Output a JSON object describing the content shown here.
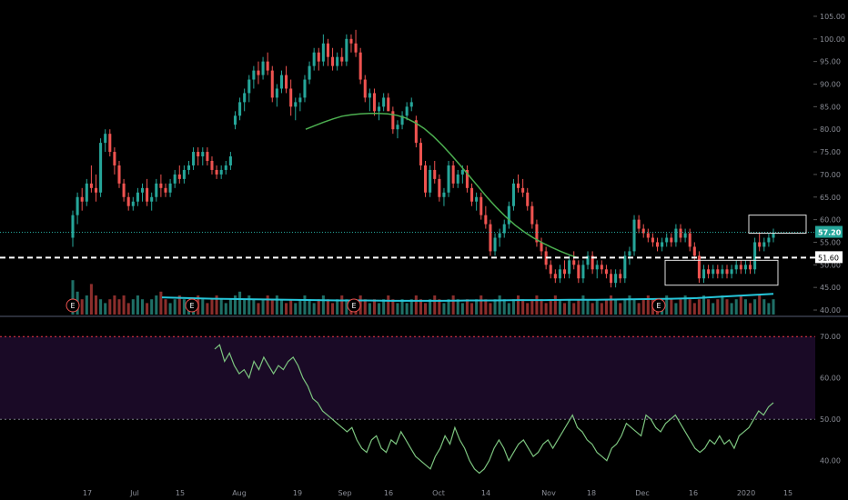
{
  "chart_data": [
    {
      "type": "candlestick",
      "panel": "price",
      "y_ticks": [
        "105.00",
        "100.00",
        "95.00",
        "90.00",
        "85.00",
        "80.00",
        "75.00",
        "70.00",
        "65.00",
        "60.00",
        "55.00",
        "50.00",
        "45.00",
        "40.00"
      ],
      "ylim": [
        39,
        107
      ],
      "last_price": "57.20",
      "level_line": "51.60",
      "colors": {
        "up": "#26a69a",
        "down": "#ef5350",
        "ma": "#4caf50",
        "vol_ma": "#26c6da",
        "level": "#ffffff",
        "last": "#26a69a"
      },
      "earnings_markers": [
        "E",
        "E",
        "E",
        "E"
      ],
      "candles": [
        [
          56,
          62,
          54,
          61
        ],
        [
          61,
          66,
          59,
          65
        ],
        [
          65,
          67,
          62,
          64
        ],
        [
          64,
          69,
          63,
          68
        ],
        [
          68,
          72,
          66,
          67
        ],
        [
          67,
          70,
          64,
          66
        ],
        [
          66,
          78,
          65,
          77
        ],
        [
          77,
          80,
          75,
          79
        ],
        [
          79,
          80,
          74,
          75
        ],
        [
          75,
          76,
          70,
          72
        ],
        [
          72,
          73,
          67,
          68
        ],
        [
          68,
          69,
          64,
          65
        ],
        [
          65,
          66,
          62,
          63
        ],
        [
          63,
          65,
          62,
          64
        ],
        [
          64,
          67,
          63,
          66
        ],
        [
          66,
          68,
          64,
          67
        ],
        [
          67,
          69,
          63,
          64
        ],
        [
          64,
          66,
          62,
          65
        ],
        [
          65,
          69,
          64,
          68
        ],
        [
          68,
          70,
          65,
          67
        ],
        [
          67,
          68,
          65,
          66
        ],
        [
          66,
          69,
          65,
          68
        ],
        [
          68,
          71,
          67,
          70
        ],
        [
          70,
          72,
          68,
          69
        ],
        [
          69,
          72,
          68,
          71
        ],
        [
          71,
          73,
          70,
          72
        ],
        [
          72,
          76,
          71,
          75
        ],
        [
          75,
          76,
          72,
          74
        ],
        [
          74,
          76,
          72,
          75
        ],
        [
          75,
          76,
          72,
          73
        ],
        [
          73,
          74,
          70,
          71
        ],
        [
          71,
          72,
          69,
          70
        ],
        [
          70,
          72,
          69,
          71
        ],
        [
          71,
          73,
          70,
          72
        ],
        [
          72,
          75,
          71,
          74
        ],
        [
          81,
          84,
          80,
          83
        ],
        [
          83,
          87,
          82,
          86
        ],
        [
          86,
          89,
          84,
          88
        ],
        [
          88,
          92,
          86,
          91
        ],
        [
          91,
          94,
          89,
          93
        ],
        [
          93,
          95,
          90,
          92
        ],
        [
          92,
          96,
          91,
          95
        ],
        [
          95,
          97,
          92,
          93
        ],
        [
          93,
          94,
          86,
          87
        ],
        [
          87,
          90,
          85,
          89
        ],
        [
          89,
          93,
          88,
          92
        ],
        [
          92,
          94,
          88,
          89
        ],
        [
          89,
          91,
          83,
          85
        ],
        [
          85,
          87,
          82,
          86
        ],
        [
          86,
          88,
          84,
          87
        ],
        [
          87,
          92,
          86,
          91
        ],
        [
          91,
          95,
          90,
          94
        ],
        [
          94,
          98,
          93,
          97
        ],
        [
          97,
          98,
          93,
          95
        ],
        [
          95,
          101,
          94,
          99
        ],
        [
          99,
          100,
          94,
          96
        ],
        [
          96,
          98,
          93,
          94
        ],
        [
          94,
          97,
          93,
          96
        ],
        [
          96,
          98,
          94,
          95
        ],
        [
          95,
          101,
          94,
          100
        ],
        [
          100,
          101,
          97,
          99
        ],
        [
          99,
          102,
          96,
          97
        ],
        [
          97,
          98,
          90,
          91
        ],
        [
          91,
          92,
          86,
          87
        ],
        [
          87,
          89,
          84,
          88
        ],
        [
          88,
          89,
          83,
          84
        ],
        [
          84,
          86,
          82,
          85
        ],
        [
          85,
          88,
          84,
          87
        ],
        [
          87,
          88,
          84,
          84
        ],
        [
          84,
          85,
          79,
          80
        ],
        [
          80,
          82,
          78,
          81
        ],
        [
          81,
          84,
          80,
          83
        ],
        [
          83,
          86,
          82,
          85
        ],
        [
          85,
          87,
          84,
          86
        ],
        [
          82,
          83,
          76,
          77
        ],
        [
          77,
          78,
          71,
          72
        ],
        [
          72,
          73,
          65,
          66
        ],
        [
          66,
          72,
          65,
          71
        ],
        [
          71,
          73,
          68,
          69
        ],
        [
          69,
          70,
          64,
          65
        ],
        [
          65,
          67,
          63,
          66
        ],
        [
          66,
          73,
          65,
          72
        ],
        [
          72,
          73,
          67,
          68
        ],
        [
          68,
          71,
          67,
          70
        ],
        [
          70,
          72,
          68,
          71
        ],
        [
          71,
          72,
          66,
          67
        ],
        [
          67,
          68,
          63,
          64
        ],
        [
          64,
          66,
          62,
          65
        ],
        [
          65,
          66,
          60,
          61
        ],
        [
          61,
          63,
          58,
          59
        ],
        [
          59,
          60,
          52,
          53
        ],
        [
          53,
          57,
          52,
          56
        ],
        [
          56,
          58,
          54,
          57
        ],
        [
          57,
          60,
          56,
          59
        ],
        [
          59,
          64,
          58,
          63
        ],
        [
          63,
          69,
          62,
          68
        ],
        [
          68,
          70,
          66,
          67
        ],
        [
          67,
          69,
          65,
          66
        ],
        [
          66,
          67,
          62,
          63
        ],
        [
          63,
          64,
          58,
          59
        ],
        [
          59,
          60,
          54,
          55
        ],
        [
          55,
          56,
          52,
          53
        ],
        [
          53,
          54,
          49,
          50
        ],
        [
          50,
          51,
          47,
          48
        ],
        [
          48,
          49,
          46,
          47
        ],
        [
          47,
          50,
          46,
          49
        ],
        [
          49,
          51,
          47,
          48
        ],
        [
          48,
          52,
          47,
          51
        ],
        [
          51,
          53,
          49,
          50
        ],
        [
          50,
          51,
          46,
          47
        ],
        [
          47,
          51,
          46,
          50
        ],
        [
          50,
          53,
          49,
          52
        ],
        [
          52,
          53,
          48,
          49
        ],
        [
          49,
          51,
          47,
          50
        ],
        [
          50,
          51,
          48,
          49
        ],
        [
          49,
          50,
          47,
          48
        ],
        [
          48,
          49,
          45,
          46
        ],
        [
          46,
          49,
          45,
          48
        ],
        [
          48,
          49,
          46,
          47
        ],
        [
          47,
          53,
          46,
          52
        ],
        [
          52,
          54,
          50,
          53
        ],
        [
          53,
          61,
          52,
          60
        ],
        [
          60,
          61,
          57,
          58
        ],
        [
          58,
          59,
          56,
          57
        ],
        [
          57,
          58,
          55,
          56
        ],
        [
          56,
          57,
          54,
          55
        ],
        [
          55,
          56,
          53,
          54
        ],
        [
          54,
          56,
          53,
          55
        ],
        [
          55,
          57,
          54,
          56
        ],
        [
          56,
          57,
          54,
          55
        ],
        [
          55,
          59,
          54,
          58
        ],
        [
          58,
          59,
          55,
          56
        ],
        [
          56,
          58,
          55,
          57
        ],
        [
          57,
          58,
          53,
          54
        ],
        [
          54,
          55,
          51,
          52
        ],
        [
          52,
          53,
          46,
          47
        ],
        [
          47,
          50,
          46,
          49
        ],
        [
          49,
          50,
          47,
          48
        ],
        [
          48,
          50,
          47,
          49
        ],
        [
          49,
          50,
          47,
          48
        ],
        [
          48,
          50,
          47,
          49
        ],
        [
          49,
          50,
          47,
          48
        ],
        [
          48,
          50,
          47,
          49
        ],
        [
          49,
          51,
          48,
          50
        ],
        [
          50,
          51,
          48,
          49
        ],
        [
          49,
          51,
          48,
          50
        ],
        [
          50,
          51,
          48,
          49
        ],
        [
          49,
          56,
          48,
          55
        ],
        [
          55,
          57,
          53,
          54
        ],
        [
          54,
          56,
          53,
          55
        ],
        [
          55,
          57,
          54,
          56
        ],
        [
          56,
          58,
          55,
          57
        ]
      ],
      "ma": [
        80.0,
        80.8,
        81.6,
        82.3,
        82.9,
        83.2,
        83.4,
        83.5,
        83.5,
        83.4,
        83.1,
        82.5,
        81.5,
        80.2,
        78.5,
        76.5,
        74.3,
        72.0,
        69.6,
        67.2,
        64.8,
        62.6,
        60.6,
        58.8,
        57.3,
        56.0,
        54.9,
        53.9,
        53.0,
        52.2,
        51.5
      ],
      "ma_x": [
        336,
        346,
        356,
        366,
        376,
        386,
        396,
        406,
        416,
        426,
        436,
        446,
        456,
        466,
        476,
        486,
        496,
        506,
        516,
        526,
        536,
        546,
        556,
        566,
        576,
        586,
        596,
        606,
        616,
        626,
        636
      ],
      "volume": [
        9,
        6,
        4,
        5,
        8,
        5,
        4,
        3,
        4,
        5,
        4,
        5,
        3,
        4,
        5,
        4,
        3,
        4,
        5,
        6,
        4,
        3,
        4,
        5,
        4,
        3,
        4,
        5,
        4,
        3,
        4,
        5,
        4,
        3,
        4,
        5,
        6,
        4,
        5,
        4,
        3,
        4,
        5,
        4,
        5,
        4,
        3,
        4,
        3,
        4,
        5,
        4,
        3,
        4,
        5,
        4,
        3,
        4,
        5,
        4,
        3,
        4,
        5,
        4,
        3,
        4,
        3,
        4,
        5,
        4,
        3,
        4,
        3,
        4,
        5,
        4,
        3,
        4,
        5,
        4,
        3,
        4,
        5,
        4,
        3,
        4,
        3,
        4,
        5,
        4,
        3,
        4,
        5,
        4,
        3,
        4,
        5,
        4,
        3,
        4,
        5,
        4,
        3,
        4,
        5,
        4,
        3,
        4,
        3,
        4,
        5,
        4,
        3,
        4,
        3,
        4,
        5,
        4,
        3,
        4,
        5,
        4,
        3,
        4,
        5,
        4,
        3,
        4,
        5,
        4,
        3,
        4,
        5,
        4,
        3,
        4,
        5,
        4,
        3,
        4,
        5,
        4,
        3,
        4,
        5,
        4,
        3,
        4,
        5,
        4,
        3,
        4
      ],
      "vol_ma": [
        5.0,
        4.8,
        4.6,
        4.5,
        4.4,
        4.3,
        4.2,
        4.1,
        4.1,
        4.0,
        4.0,
        4.0,
        4.1,
        4.1,
        4.2,
        4.2,
        4.3,
        4.3,
        4.4,
        4.5,
        4.6,
        4.8,
        5.2,
        5.6,
        6.0
      ]
    },
    {
      "type": "line",
      "panel": "oscillator",
      "y_ticks": [
        "70.00",
        "60.00",
        "50.00",
        "40.00"
      ],
      "ylim": [
        34,
        74
      ],
      "band": [
        50,
        70
      ],
      "values": [
        67,
        68,
        64,
        66,
        63,
        61,
        62,
        60,
        64,
        62,
        65,
        63,
        61,
        63,
        62,
        64,
        65,
        63,
        60,
        58,
        55,
        54,
        52,
        51,
        50,
        49,
        48,
        47,
        48,
        45,
        43,
        42,
        45,
        46,
        43,
        42,
        45,
        44,
        47,
        45,
        43,
        41,
        40,
        39,
        38,
        41,
        43,
        46,
        44,
        48,
        45,
        43,
        40,
        38,
        37,
        38,
        40,
        43,
        45,
        43,
        40,
        42,
        44,
        45,
        43,
        41,
        42,
        44,
        45,
        43,
        45,
        47,
        49,
        51,
        48,
        47,
        45,
        44,
        42,
        41,
        40,
        43,
        44,
        46,
        49,
        48,
        47,
        46,
        51,
        50,
        48,
        47,
        49,
        50,
        51,
        49,
        47,
        45,
        43,
        42,
        43,
        45,
        44,
        46,
        44,
        45,
        43,
        46,
        47,
        48,
        50,
        52,
        51,
        53,
        54
      ],
      "colors": {
        "line": "#7cc47f",
        "band_fill": "#1a0a26",
        "band_line": "#f23645",
        "mid": "#787b86"
      }
    }
  ],
  "x_axis": {
    "tick_labels": [
      "17",
      "Jul",
      "15",
      "Aug",
      "19",
      "Sep",
      "16",
      "Oct",
      "14",
      "Nov",
      "18",
      "Dec",
      "16",
      "2020",
      "15"
    ]
  }
}
